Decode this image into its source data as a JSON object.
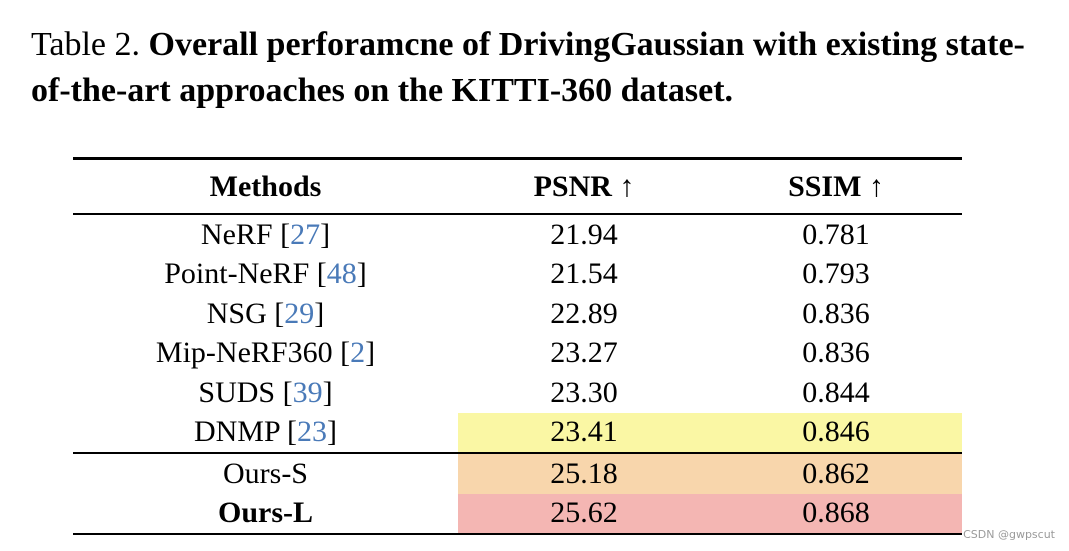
{
  "caption": {
    "label": "Table 2.",
    "text": "Overall perforamcne of DrivingGaussian with existing state-of-the-art approaches on the KITTI-360 dataset."
  },
  "table": {
    "headers": [
      "Methods",
      "PSNR ↑",
      "SSIM ↑"
    ],
    "rows": [
      {
        "method": "NeRF",
        "ref": "27",
        "psnr": "21.94",
        "ssim": "0.781",
        "highlight": null,
        "bold": false
      },
      {
        "method": "Point-NeRF",
        "ref": "48",
        "psnr": "21.54",
        "ssim": "0.793",
        "highlight": null,
        "bold": false
      },
      {
        "method": "NSG",
        "ref": "29",
        "psnr": "22.89",
        "ssim": "0.836",
        "highlight": null,
        "bold": false
      },
      {
        "method": "Mip-NeRF360",
        "ref": "2",
        "psnr": "23.27",
        "ssim": "0.836",
        "highlight": null,
        "bold": false
      },
      {
        "method": "SUDS",
        "ref": "39",
        "psnr": "23.30",
        "ssim": "0.844",
        "highlight": null,
        "bold": false
      },
      {
        "method": "DNMP",
        "ref": "23",
        "psnr": "23.41",
        "ssim": "0.846",
        "highlight": "#faf7a4",
        "bold": false
      },
      {
        "method": "Ours-S",
        "ref": null,
        "psnr": "25.18",
        "ssim": "0.862",
        "highlight": "#f8d6ac",
        "bold": false,
        "separator": true
      },
      {
        "method": "Ours-L",
        "ref": null,
        "psnr": "25.62",
        "ssim": "0.868",
        "highlight": "#f4b6b3",
        "bold": true
      }
    ]
  },
  "colors": {
    "ref_link": "#4a7ab8",
    "third_best": "#faf7a4",
    "second_best": "#f8d6ac",
    "best": "#f4b6b3"
  },
  "watermark": "CSDN @gwpscut"
}
